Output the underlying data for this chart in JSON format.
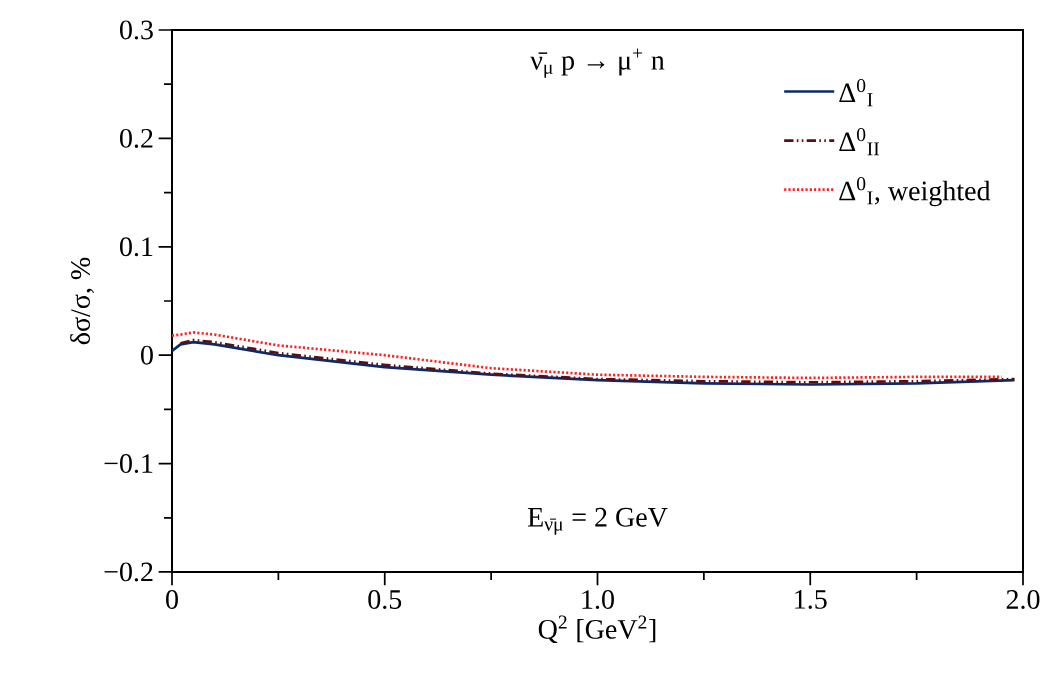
{
  "chart_data": {
    "type": "line",
    "title": "ν̄$_{μ}$ p → μ$^{+}$ n",
    "xlabel": "Q$^{2}$ [GeV$^{2}$]",
    "ylabel": "δσ/σ, %",
    "annotations": [
      "E$_{ν̄μ}$ = 2 GeV"
    ],
    "series": [
      {
        "name": "Δ$^{0}$$_{I}$",
        "color": "#0a2a6e",
        "line_style": "solid",
        "x": [
          0,
          0.02,
          0.05,
          0.1,
          0.25,
          0.5,
          0.75,
          1.0,
          1.25,
          1.5,
          1.75,
          1.98
        ],
        "values": [
          0.004,
          0.01,
          0.012,
          0.01,
          0.0,
          -0.011,
          -0.018,
          -0.023,
          -0.026,
          -0.027,
          -0.026,
          -0.023
        ]
      },
      {
        "name": "Δ$^{0}$$_{II}$",
        "color": "#5a1010",
        "line_style": "dashed",
        "x": [
          0.02,
          0.05,
          0.1,
          0.25,
          0.5,
          0.75,
          1.0,
          1.25,
          1.5,
          1.75,
          1.98
        ],
        "values": [
          0.011,
          0.014,
          0.012,
          0.002,
          -0.009,
          -0.017,
          -0.022,
          -0.024,
          -0.025,
          -0.024,
          -0.022
        ]
      },
      {
        "name": "Δ$^{0}$$_{I}$, weighted",
        "color": "#ff2020",
        "line_style": "dotted",
        "x": [
          0,
          0.02,
          0.05,
          0.1,
          0.25,
          0.5,
          0.75,
          1.0,
          1.25,
          1.5,
          1.75,
          1.95
        ],
        "values": [
          0.018,
          0.019,
          0.021,
          0.019,
          0.009,
          0.0,
          -0.012,
          -0.018,
          -0.02,
          -0.021,
          -0.02,
          -0.02
        ]
      }
    ],
    "xlim": [
      0,
      2.0
    ],
    "ylim": [
      -0.2,
      0.3
    ],
    "xticks": [
      0,
      0.5,
      {
        "value": 1.0,
        "label": "1.0"
      },
      1.5,
      {
        "value": 2.0,
        "label": "2.0"
      }
    ],
    "yticks": [
      {
        "value": -0.2,
        "label": "−0.2"
      },
      {
        "value": -0.1,
        "label": "−0.1"
      },
      0,
      0.1,
      0.2,
      0.3
    ],
    "legend": "top right",
    "grid": false,
    "marker": "none"
  }
}
